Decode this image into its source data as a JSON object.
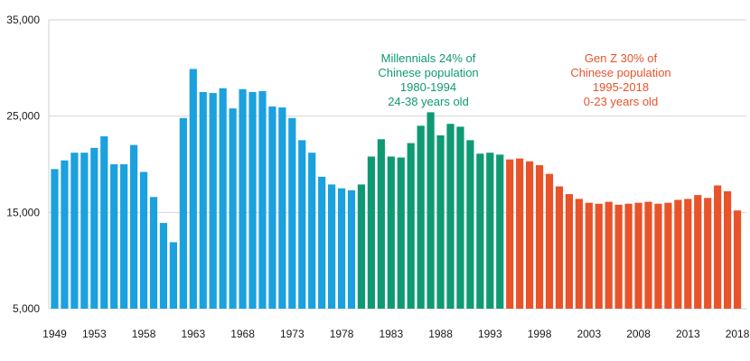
{
  "chart_data": {
    "type": "bar",
    "ylim": [
      5000,
      35000
    ],
    "y_ticks": [
      5000,
      15000,
      25000,
      35000
    ],
    "y_tick_labels": [
      "5,000",
      "15,000",
      "25,000",
      "35,000"
    ],
    "x_tick_labels": [
      "1949",
      "1953",
      "1958",
      "1963",
      "1968",
      "1973",
      "1978",
      "1983",
      "1988",
      "1993",
      "1998",
      "2003",
      "2008",
      "2013",
      "2018"
    ],
    "grid": "horizontal",
    "x": [
      1949,
      1950,
      1951,
      1952,
      1953,
      1954,
      1955,
      1956,
      1957,
      1958,
      1959,
      1960,
      1961,
      1962,
      1963,
      1964,
      1965,
      1966,
      1967,
      1968,
      1969,
      1970,
      1971,
      1972,
      1973,
      1974,
      1975,
      1976,
      1977,
      1978,
      1979,
      1980,
      1981,
      1982,
      1983,
      1984,
      1985,
      1986,
      1987,
      1988,
      1989,
      1990,
      1991,
      1992,
      1993,
      1994,
      1995,
      1996,
      1997,
      1998,
      1999,
      2000,
      2001,
      2002,
      2003,
      2004,
      2005,
      2006,
      2007,
      2008,
      2009,
      2010,
      2011,
      2012,
      2013,
      2014,
      2015,
      2016,
      2017,
      2018
    ],
    "values": [
      19500,
      20400,
      21200,
      21200,
      21700,
      22900,
      20000,
      20000,
      22000,
      19200,
      16600,
      13900,
      11900,
      24800,
      29900,
      27500,
      27400,
      27900,
      25800,
      27800,
      27500,
      27600,
      26000,
      25900,
      24800,
      22500,
      21200,
      18700,
      17900,
      17500,
      17300,
      17900,
      20800,
      22600,
      20800,
      20700,
      22200,
      24000,
      25400,
      23000,
      24200,
      23900,
      22500,
      21100,
      21200,
      21000,
      20500,
      20600,
      20300,
      19900,
      19000,
      17700,
      16900,
      16400,
      16000,
      15900,
      16100,
      15800,
      15900,
      16000,
      16100,
      15900,
      16000,
      16300,
      16400,
      16800,
      16500,
      17800,
      17200,
      15200
    ],
    "series": [
      {
        "color": "#1ba1de",
        "from": 1949,
        "to": 1979
      },
      {
        "color": "#0f9a74",
        "from": 1980,
        "to": 1994
      },
      {
        "color": "#e8532a",
        "from": 1995,
        "to": 2018
      }
    ],
    "annotations": [
      {
        "color": "#0f9a74",
        "lines": [
          "Millennials 24% of",
          "Chinese population",
          "1980-1994",
          "24-38 years old"
        ]
      },
      {
        "color": "#e8532a",
        "lines": [
          "Gen Z 30% of",
          "Chinese population",
          "1995-2018",
          "0-23 years old"
        ]
      }
    ]
  }
}
